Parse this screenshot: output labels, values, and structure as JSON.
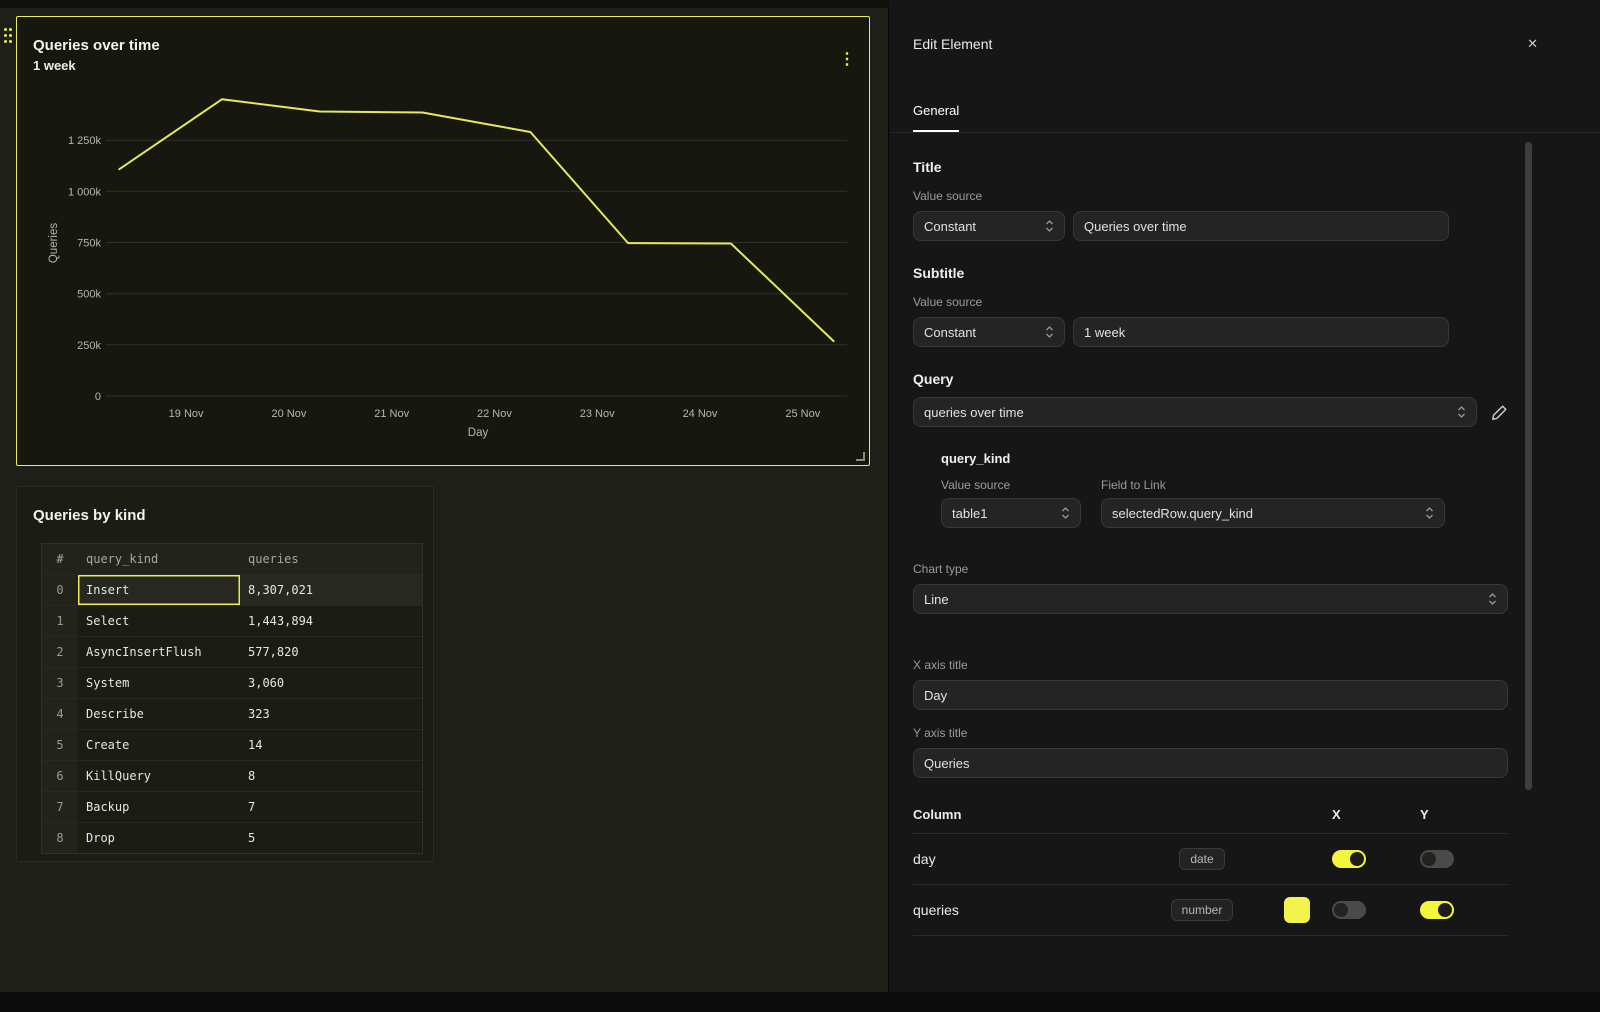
{
  "colors": {
    "accent": "#e9ec52",
    "toggle_on": "#f4f63c",
    "line": "#e6ea58",
    "grid": "#2f312a",
    "tick_text": "#b5b8ae"
  },
  "icons": {
    "close": "✕",
    "kebab": "⋮"
  },
  "chart_data": {
    "type": "line",
    "title": "Queries over time",
    "subtitle": "1 week",
    "xlabel": "Day",
    "ylabel": "Queries",
    "x_tick_labels": [
      "19 Nov",
      "20 Nov",
      "21 Nov",
      "22 Nov",
      "23 Nov",
      "24 Nov",
      "25 Nov"
    ],
    "x_tick_days": [
      19,
      20,
      21,
      22,
      23,
      24,
      25
    ],
    "y_tick_labels": [
      "0",
      "250k",
      "500k",
      "750k",
      "1 000k",
      "1 250k"
    ],
    "y_tick_values": [
      0,
      250000,
      500000,
      750000,
      1000000,
      1250000
    ],
    "ylim": [
      0,
      1500000
    ],
    "x_range": [
      18.25,
      25.43
    ],
    "grid": true,
    "legend": "none",
    "series": [
      {
        "name": "queries",
        "x_days": [
          18.35,
          19.35,
          20.3,
          21.3,
          22.35,
          23.3,
          24.3,
          25.3
        ],
        "values": [
          1108000,
          1450000,
          1390000,
          1385000,
          1290000,
          747000,
          745000,
          268000
        ]
      }
    ]
  },
  "canvas": {
    "table_card": {
      "title": "Queries by kind",
      "columns": [
        "#",
        "query_kind",
        "queries"
      ],
      "rows": [
        {
          "i": "0",
          "kind": "Insert",
          "queries": "8,307,021"
        },
        {
          "i": "1",
          "kind": "Select",
          "queries": "1,443,894"
        },
        {
          "i": "2",
          "kind": "AsyncInsertFlush",
          "queries": "577,820"
        },
        {
          "i": "3",
          "kind": "System",
          "queries": "3,060"
        },
        {
          "i": "4",
          "kind": "Describe",
          "queries": "323"
        },
        {
          "i": "5",
          "kind": "Create",
          "queries": "14"
        },
        {
          "i": "6",
          "kind": "KillQuery",
          "queries": "8"
        },
        {
          "i": "7",
          "kind": "Backup",
          "queries": "7"
        },
        {
          "i": "8",
          "kind": "Drop",
          "queries": "5"
        }
      ],
      "selected_cell": {
        "row": 0,
        "column": "query_kind"
      }
    }
  },
  "panel": {
    "title": "Edit Element",
    "tabs": [
      {
        "label": "General",
        "active": true
      }
    ],
    "title_section": {
      "heading": "Title",
      "value_source_label": "Value source",
      "source": "Constant",
      "value": "Queries over time"
    },
    "subtitle_section": {
      "heading": "Subtitle",
      "value_source_label": "Value source",
      "source": "Constant",
      "value": "1 week"
    },
    "query_section": {
      "heading": "Query",
      "selected": "queries over time"
    },
    "query_kind": {
      "heading": "query_kind",
      "value_source_label": "Value source",
      "field_label": "Field to Link",
      "source": "table1",
      "field": "selectedRow.query_kind"
    },
    "chart_type": {
      "label": "Chart type",
      "value": "Line"
    },
    "x_axis": {
      "label": "X axis title",
      "value": "Day"
    },
    "y_axis": {
      "label": "Y axis title",
      "value": "Queries"
    },
    "columns_table": {
      "header": {
        "column": "Column",
        "x": "X",
        "y": "Y"
      },
      "rows": [
        {
          "name": "day",
          "type_badge": "date",
          "x_on": true,
          "y_on": false
        },
        {
          "name": "queries",
          "type_badge": "number",
          "color": "#f2f44e",
          "x_on": false,
          "y_on": true
        }
      ]
    }
  }
}
